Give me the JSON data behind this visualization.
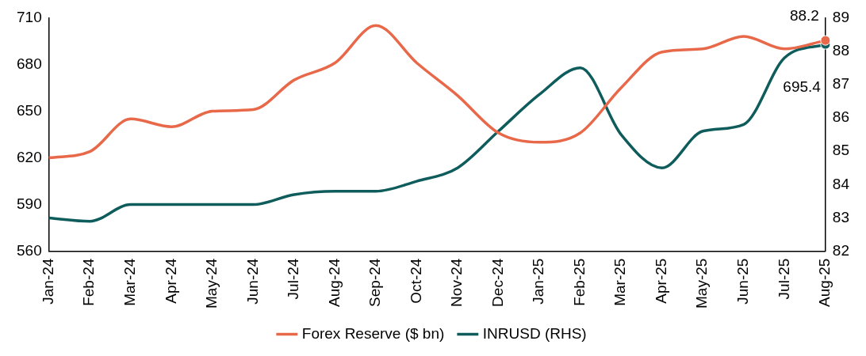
{
  "chart_data": {
    "type": "line",
    "categories": [
      "Jan-24",
      "Feb-24",
      "Mar-24",
      "Apr-24",
      "May-24",
      "Jun-24",
      "Jul-24",
      "Aug-24",
      "Sep-24",
      "Oct-24",
      "Nov-24",
      "Dec-24",
      "Jan-25",
      "Feb-25",
      "Mar-25",
      "Apr-25",
      "May-25",
      "Jun-25",
      "Jul-25",
      "Aug-25"
    ],
    "series": [
      {
        "name": "Forex Reserve ($ bn)",
        "color": "#e8694a",
        "values": [
          620,
          624,
          645,
          640,
          650,
          651,
          670,
          681,
          705,
          681,
          660,
          636,
          630,
          636,
          665,
          688,
          690,
          698,
          690,
          695.4
        ],
        "value_labels": [
          null,
          null,
          null,
          null,
          null,
          null,
          null,
          null,
          null,
          null,
          null,
          null,
          null,
          null,
          null,
          null,
          null,
          null,
          null,
          "695.4"
        ]
      },
      {
        "name": "INRUSD (RHS)",
        "color": "#0f5c5c",
        "axis": "y2",
        "values": [
          83.0,
          82.9,
          83.4,
          83.4,
          83.4,
          83.4,
          83.7,
          83.8,
          83.8,
          84.1,
          84.5,
          85.6,
          86.7,
          87.5,
          85.5,
          84.5,
          85.6,
          85.8,
          87.8,
          88.2
        ],
        "value_labels": [
          null,
          null,
          null,
          null,
          null,
          null,
          null,
          null,
          null,
          null,
          null,
          null,
          null,
          null,
          null,
          null,
          null,
          null,
          null,
          "88.2"
        ]
      }
    ],
    "ylim": [
      560,
      710
    ],
    "yticks": [
      560,
      590,
      620,
      650,
      680,
      710
    ],
    "y2lim": [
      82,
      89
    ],
    "y2ticks": [
      82,
      83,
      84,
      85,
      86,
      87,
      88,
      89
    ],
    "legend": "bottom",
    "grid": false
  }
}
